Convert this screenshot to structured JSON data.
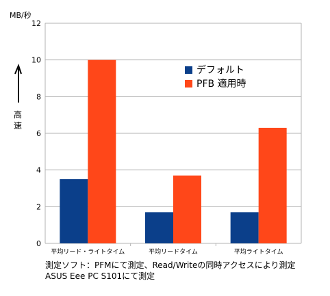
{
  "chart_data": {
    "type": "bar",
    "unit_label": "MB/秒",
    "speed_label": "高速",
    "categories": [
      "平均リード・ライトタイム",
      "平均リードタイム",
      "平均ライトタイム"
    ],
    "series": [
      {
        "name": "デフォルト",
        "color": "#0b3f8a",
        "values": [
          3.5,
          1.7,
          1.7
        ]
      },
      {
        "name": "PFB 適用時",
        "color": "#ff4719",
        "values": [
          10.0,
          3.7,
          6.3
        ]
      }
    ],
    "yticks": [
      0,
      2,
      4,
      6,
      8,
      10,
      12
    ],
    "ylim": [
      0,
      12
    ],
    "grid": true,
    "legend_position": "upper-right"
  },
  "caption": {
    "line1": "測定ソフト：PFMにて測定、Read/Writeの同時アクセスにより測定",
    "line2": "ASUS Eee PC S101にて測定"
  }
}
